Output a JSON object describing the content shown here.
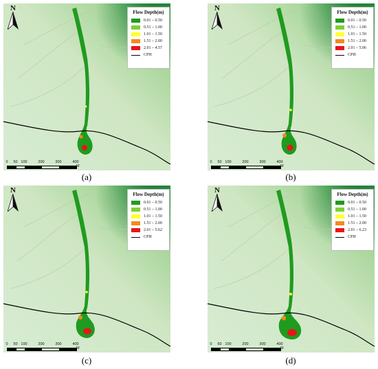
{
  "figure": {
    "panels": [
      {
        "caption": "(a)",
        "legend": {
          "title": "Flow Depth(m)",
          "items": [
            {
              "label": "0.01 – 0.50",
              "color": "#1f9b1f"
            },
            {
              "label": "0.51 – 1.00",
              "color": "#7fcf2f"
            },
            {
              "label": "1.01 – 1.50",
              "color": "#ffff33"
            },
            {
              "label": "1.51 – 2.00",
              "color": "#f28a1e"
            },
            {
              "label": "2.01 – 4.57",
              "color": "#e8141b"
            }
          ],
          "line_label": "CPH"
        },
        "north_label": "N",
        "scale_ticks": [
          "0",
          "50",
          "100",
          "200",
          "300",
          "400"
        ],
        "scale_unit": "M"
      },
      {
        "caption": "(b)",
        "legend": {
          "title": "Flow Depth(m)",
          "items": [
            {
              "label": "0.01 – 0.50",
              "color": "#1f9b1f"
            },
            {
              "label": "0.51 – 1.00",
              "color": "#7fcf2f"
            },
            {
              "label": "1.01 – 1.50",
              "color": "#ffff33"
            },
            {
              "label": "1.51 – 2.00",
              "color": "#f28a1e"
            },
            {
              "label": "2.01 – 5.06",
              "color": "#e8141b"
            }
          ],
          "line_label": "CPH"
        },
        "north_label": "N",
        "scale_ticks": [
          "0",
          "50",
          "100",
          "200",
          "300",
          "400"
        ],
        "scale_unit": "M"
      },
      {
        "caption": "(c)",
        "legend": {
          "title": "Flow Depth(m)",
          "items": [
            {
              "label": "0.01 – 0.50",
              "color": "#1f9b1f"
            },
            {
              "label": "0.51 – 1.00",
              "color": "#7fcf2f"
            },
            {
              "label": "1.01 – 1.50",
              "color": "#ffff33"
            },
            {
              "label": "1.51 – 2.00",
              "color": "#f28a1e"
            },
            {
              "label": "2.01 – 5.62",
              "color": "#e8141b"
            }
          ],
          "line_label": "CPH"
        },
        "north_label": "N",
        "scale_ticks": [
          "0",
          "50",
          "100",
          "200",
          "300",
          "400"
        ],
        "scale_unit": "M"
      },
      {
        "caption": "(d)",
        "legend": {
          "title": "Flow Depth(m)",
          "items": [
            {
              "label": "0.01 – 0.50",
              "color": "#1f9b1f"
            },
            {
              "label": "0.51 – 1.00",
              "color": "#7fcf2f"
            },
            {
              "label": "1.01 – 1.50",
              "color": "#ffff33"
            },
            {
              "label": "1.51 – 2.00",
              "color": "#f28a1e"
            },
            {
              "label": "2.01 – 6.23",
              "color": "#e8141b"
            }
          ],
          "line_label": "CPH"
        },
        "north_label": "N",
        "scale_ticks": [
          "0",
          "50",
          "100",
          "200",
          "300",
          "400"
        ],
        "scale_unit": "M"
      }
    ],
    "colors": {
      "terrain_low": "#c9e3c2",
      "terrain_high": "#1f8a3a",
      "cph_line": "#000000"
    }
  }
}
